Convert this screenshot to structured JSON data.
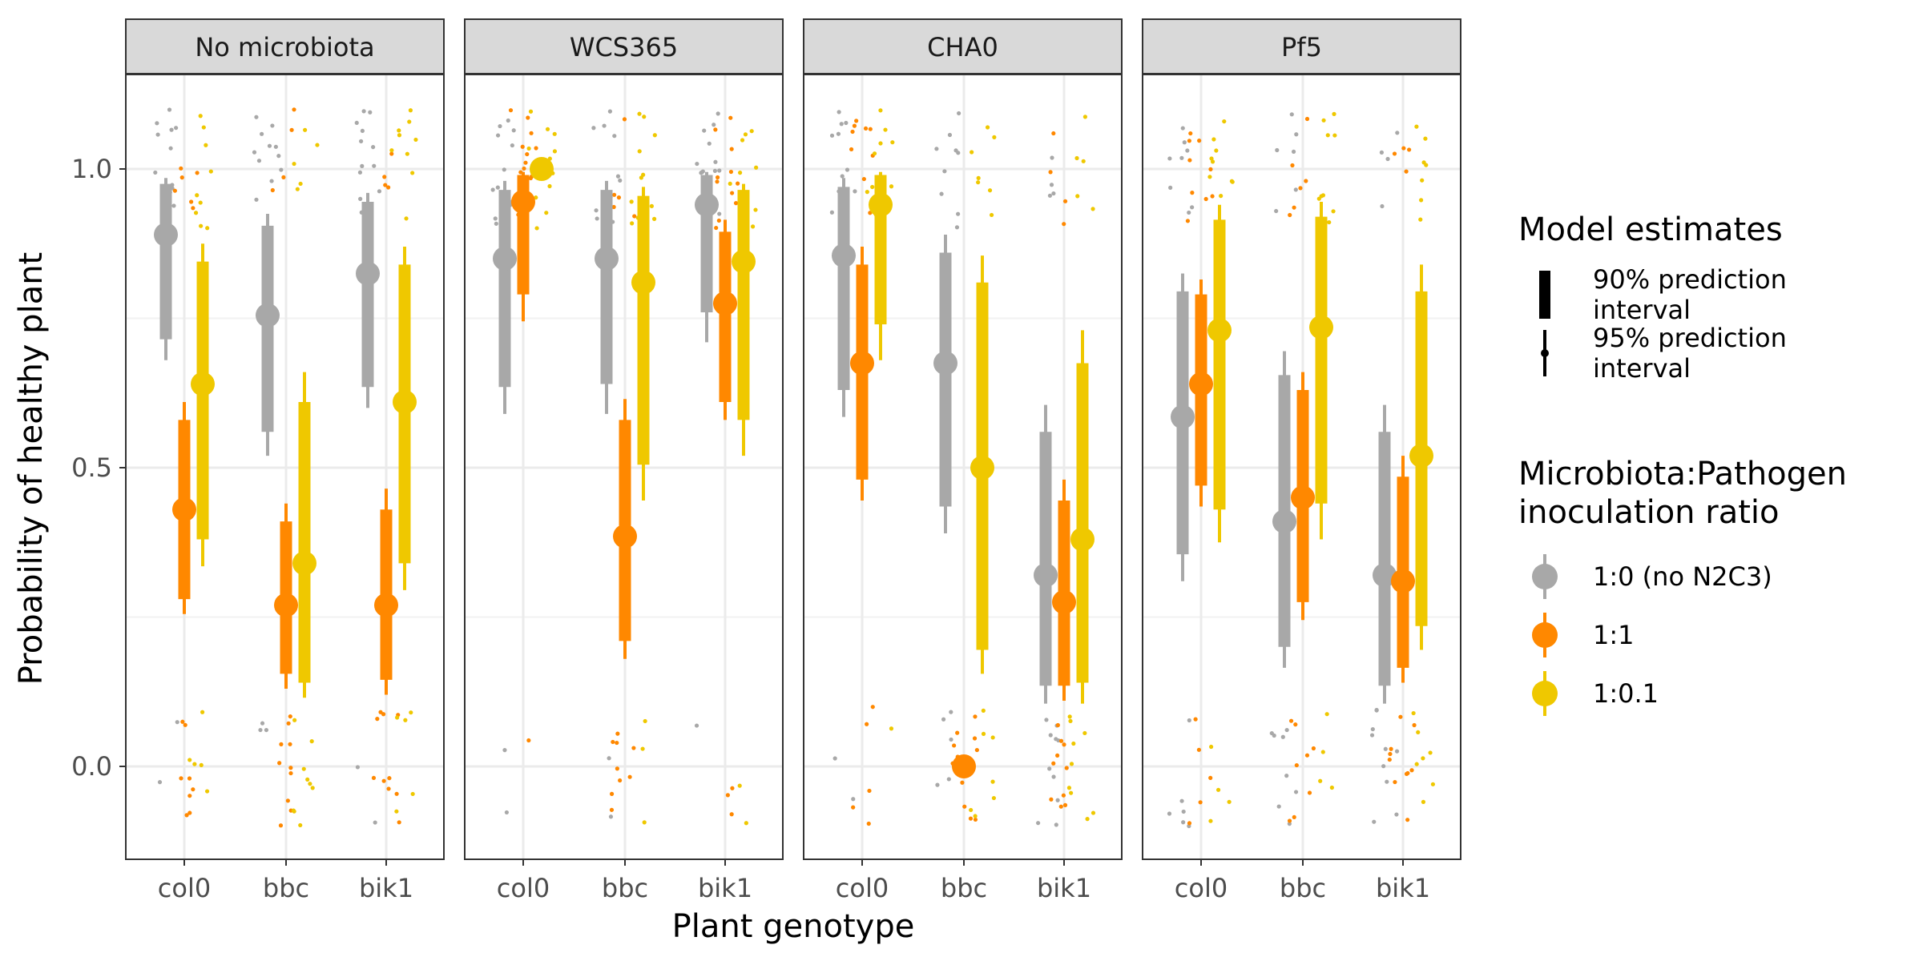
{
  "chart_data": {
    "type": "scatter",
    "title": "",
    "xlabel": "Plant genotype",
    "ylabel": "Probability of healthy plant",
    "ylim": [
      -0.155,
      1.155
    ],
    "yticks": [
      0.0,
      0.5,
      1.0
    ],
    "ytick_labels": [
      "0.0",
      "0.5",
      "1.0"
    ],
    "categories": [
      "col0",
      "bbc",
      "bik1"
    ],
    "facets": [
      "No microbiota",
      "WCS365",
      "CHA0",
      "Pf5"
    ],
    "grid": true,
    "legend_placement": "right",
    "legend_model": {
      "title": "Model estimates",
      "items": [
        {
          "line1": "90% prediction",
          "line2": "interval"
        },
        {
          "line1": "95% prediction",
          "line2": "interval"
        }
      ]
    },
    "legend_ratio": {
      "title_line1": "Microbiota:Pathogen",
      "title_line2": "inoculation ratio",
      "items": [
        {
          "label": "1:0 (no N2C3)",
          "color": "#A8A8A8"
        },
        {
          "label": "1:1",
          "color": "#FF8800"
        },
        {
          "label": "1:0.1",
          "color": "#EFC800"
        }
      ]
    },
    "series": [
      {
        "name": "1:0 (no N2C3)",
        "color": "#A8A8A8"
      },
      {
        "name": "1:1",
        "color": "#FF8800"
      },
      {
        "name": "1:0.1",
        "color": "#EFC800"
      }
    ],
    "estimates": [
      {
        "facet": "No microbiota",
        "genotype": "col0",
        "ratio": "1:0 (no N2C3)",
        "mean": 0.89,
        "lo90": 0.715,
        "hi90": 0.975,
        "lo95": 0.68,
        "hi95": 0.985
      },
      {
        "facet": "No microbiota",
        "genotype": "col0",
        "ratio": "1:1",
        "mean": 0.43,
        "lo90": 0.28,
        "hi90": 0.58,
        "lo95": 0.255,
        "hi95": 0.61
      },
      {
        "facet": "No microbiota",
        "genotype": "col0",
        "ratio": "1:0.1",
        "mean": 0.64,
        "lo90": 0.38,
        "hi90": 0.845,
        "lo95": 0.335,
        "hi95": 0.875
      },
      {
        "facet": "No microbiota",
        "genotype": "bbc",
        "ratio": "1:0 (no N2C3)",
        "mean": 0.755,
        "lo90": 0.56,
        "hi90": 0.905,
        "lo95": 0.52,
        "hi95": 0.925
      },
      {
        "facet": "No microbiota",
        "genotype": "bbc",
        "ratio": "1:1",
        "mean": 0.27,
        "lo90": 0.155,
        "hi90": 0.41,
        "lo95": 0.13,
        "hi95": 0.44
      },
      {
        "facet": "No microbiota",
        "genotype": "bbc",
        "ratio": "1:0.1",
        "mean": 0.34,
        "lo90": 0.14,
        "hi90": 0.61,
        "lo95": 0.115,
        "hi95": 0.66
      },
      {
        "facet": "No microbiota",
        "genotype": "bik1",
        "ratio": "1:0 (no N2C3)",
        "mean": 0.825,
        "lo90": 0.635,
        "hi90": 0.945,
        "lo95": 0.6,
        "hi95": 0.96
      },
      {
        "facet": "No microbiota",
        "genotype": "bik1",
        "ratio": "1:1",
        "mean": 0.27,
        "lo90": 0.145,
        "hi90": 0.43,
        "lo95": 0.12,
        "hi95": 0.465
      },
      {
        "facet": "No microbiota",
        "genotype": "bik1",
        "ratio": "1:0.1",
        "mean": 0.61,
        "lo90": 0.34,
        "hi90": 0.84,
        "lo95": 0.295,
        "hi95": 0.87
      },
      {
        "facet": "WCS365",
        "genotype": "col0",
        "ratio": "1:0 (no N2C3)",
        "mean": 0.85,
        "lo90": 0.635,
        "hi90": 0.965,
        "lo95": 0.59,
        "hi95": 0.98
      },
      {
        "facet": "WCS365",
        "genotype": "col0",
        "ratio": "1:1",
        "mean": 0.945,
        "lo90": 0.79,
        "hi90": 0.99,
        "lo95": 0.745,
        "hi95": 0.995
      },
      {
        "facet": "WCS365",
        "genotype": "col0",
        "ratio": "1:0.1",
        "mean": 1.0,
        "lo90": 1.0,
        "hi90": 1.0,
        "lo95": 1.0,
        "hi95": 1.0
      },
      {
        "facet": "WCS365",
        "genotype": "bbc",
        "ratio": "1:0 (no N2C3)",
        "mean": 0.85,
        "lo90": 0.64,
        "hi90": 0.965,
        "lo95": 0.59,
        "hi95": 0.98
      },
      {
        "facet": "WCS365",
        "genotype": "bbc",
        "ratio": "1:1",
        "mean": 0.385,
        "lo90": 0.21,
        "hi90": 0.58,
        "lo95": 0.18,
        "hi95": 0.615
      },
      {
        "facet": "WCS365",
        "genotype": "bbc",
        "ratio": "1:0.1",
        "mean": 0.81,
        "lo90": 0.505,
        "hi90": 0.955,
        "lo95": 0.445,
        "hi95": 0.97
      },
      {
        "facet": "WCS365",
        "genotype": "bik1",
        "ratio": "1:0 (no N2C3)",
        "mean": 0.94,
        "lo90": 0.76,
        "hi90": 0.99,
        "lo95": 0.71,
        "hi95": 0.995
      },
      {
        "facet": "WCS365",
        "genotype": "bik1",
        "ratio": "1:1",
        "mean": 0.775,
        "lo90": 0.61,
        "hi90": 0.895,
        "lo95": 0.58,
        "hi95": 0.915
      },
      {
        "facet": "WCS365",
        "genotype": "bik1",
        "ratio": "1:0.1",
        "mean": 0.845,
        "lo90": 0.58,
        "hi90": 0.965,
        "lo95": 0.52,
        "hi95": 0.975
      },
      {
        "facet": "CHA0",
        "genotype": "col0",
        "ratio": "1:0 (no N2C3)",
        "mean": 0.855,
        "lo90": 0.63,
        "hi90": 0.97,
        "lo95": 0.585,
        "hi95": 0.985
      },
      {
        "facet": "CHA0",
        "genotype": "col0",
        "ratio": "1:1",
        "mean": 0.675,
        "lo90": 0.48,
        "hi90": 0.84,
        "lo95": 0.445,
        "hi95": 0.87
      },
      {
        "facet": "CHA0",
        "genotype": "col0",
        "ratio": "1:0.1",
        "mean": 0.94,
        "lo90": 0.74,
        "hi90": 0.99,
        "lo95": 0.68,
        "hi95": 0.995
      },
      {
        "facet": "CHA0",
        "genotype": "bbc",
        "ratio": "1:0 (no N2C3)",
        "mean": 0.675,
        "lo90": 0.435,
        "hi90": 0.86,
        "lo95": 0.39,
        "hi95": 0.89
      },
      {
        "facet": "CHA0",
        "genotype": "bbc",
        "ratio": "1:1",
        "mean": 0.0,
        "lo90": 0.0,
        "hi90": 0.0,
        "lo95": 0.0,
        "hi95": 0.0
      },
      {
        "facet": "CHA0",
        "genotype": "bbc",
        "ratio": "1:0.1",
        "mean": 0.5,
        "lo90": 0.195,
        "hi90": 0.81,
        "lo95": 0.155,
        "hi95": 0.855
      },
      {
        "facet": "CHA0",
        "genotype": "bik1",
        "ratio": "1:0 (no N2C3)",
        "mean": 0.32,
        "lo90": 0.135,
        "hi90": 0.56,
        "lo95": 0.105,
        "hi95": 0.605
      },
      {
        "facet": "CHA0",
        "genotype": "bik1",
        "ratio": "1:1",
        "mean": 0.275,
        "lo90": 0.135,
        "hi90": 0.445,
        "lo95": 0.11,
        "hi95": 0.48
      },
      {
        "facet": "CHA0",
        "genotype": "bik1",
        "ratio": "1:0.1",
        "mean": 0.38,
        "lo90": 0.14,
        "hi90": 0.675,
        "lo95": 0.105,
        "hi95": 0.73
      },
      {
        "facet": "Pf5",
        "genotype": "col0",
        "ratio": "1:0 (no N2C3)",
        "mean": 0.585,
        "lo90": 0.355,
        "hi90": 0.795,
        "lo95": 0.31,
        "hi95": 0.825
      },
      {
        "facet": "Pf5",
        "genotype": "col0",
        "ratio": "1:1",
        "mean": 0.64,
        "lo90": 0.47,
        "hi90": 0.79,
        "lo95": 0.435,
        "hi95": 0.815
      },
      {
        "facet": "Pf5",
        "genotype": "col0",
        "ratio": "1:0.1",
        "mean": 0.73,
        "lo90": 0.43,
        "hi90": 0.915,
        "lo95": 0.375,
        "hi95": 0.94
      },
      {
        "facet": "Pf5",
        "genotype": "bbc",
        "ratio": "1:0 (no N2C3)",
        "mean": 0.41,
        "lo90": 0.2,
        "hi90": 0.655,
        "lo95": 0.165,
        "hi95": 0.695
      },
      {
        "facet": "Pf5",
        "genotype": "bbc",
        "ratio": "1:1",
        "mean": 0.45,
        "lo90": 0.275,
        "hi90": 0.63,
        "lo95": 0.245,
        "hi95": 0.66
      },
      {
        "facet": "Pf5",
        "genotype": "bbc",
        "ratio": "1:0.1",
        "mean": 0.735,
        "lo90": 0.44,
        "hi90": 0.92,
        "lo95": 0.38,
        "hi95": 0.945
      },
      {
        "facet": "Pf5",
        "genotype": "bik1",
        "ratio": "1:0 (no N2C3)",
        "mean": 0.32,
        "lo90": 0.135,
        "hi90": 0.56,
        "lo95": 0.105,
        "hi95": 0.605
      },
      {
        "facet": "Pf5",
        "genotype": "bik1",
        "ratio": "1:1",
        "mean": 0.31,
        "lo90": 0.165,
        "hi90": 0.485,
        "lo95": 0.14,
        "hi95": 0.52
      },
      {
        "facet": "Pf5",
        "genotype": "bik1",
        "ratio": "1:0.1",
        "mean": 0.52,
        "lo90": 0.235,
        "hi90": 0.795,
        "lo95": 0.195,
        "hi95": 0.84
      }
    ],
    "observations_jitter": {
      "description_values": "binary outcomes (0 = diseased, 1 = healthy) plotted with jitter",
      "outcome_values": [
        0,
        1
      ]
    }
  }
}
